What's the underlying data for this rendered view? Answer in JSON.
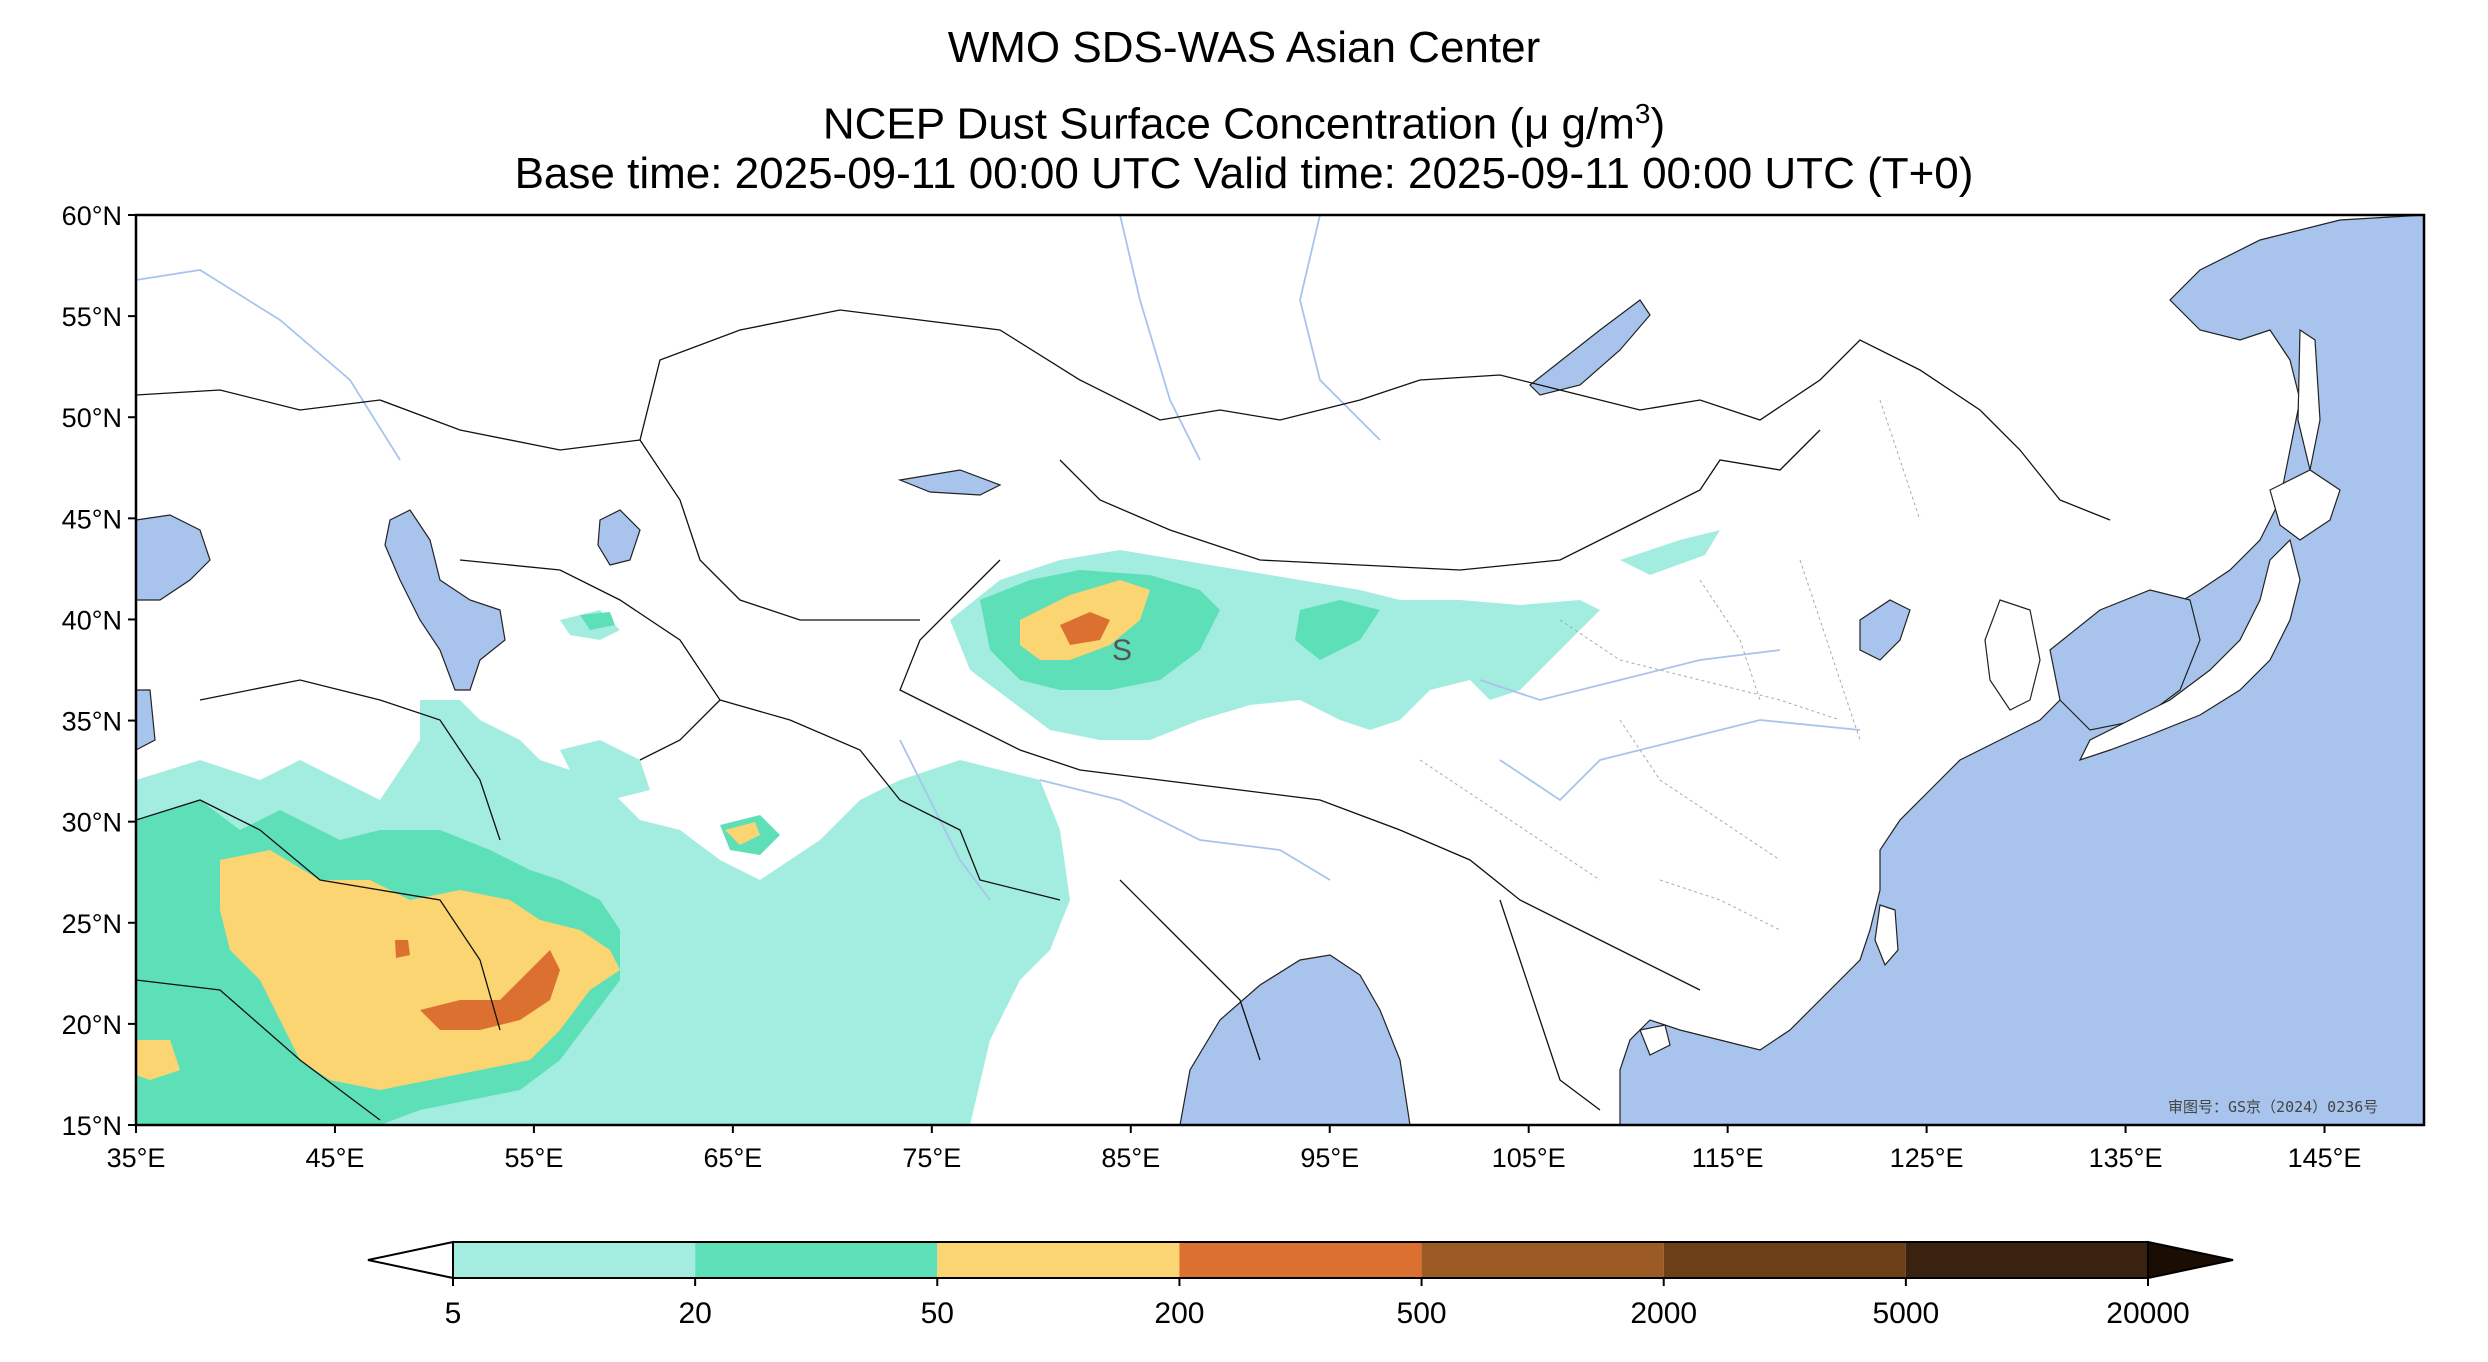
{
  "header": {
    "line1": "WMO SDS-WAS Asian Center",
    "line2_prefix": "NCEP Dust Surface Concentration (",
    "line2_unit": "μ g/m",
    "line2_sup": "3",
    "line2_suffix": ")",
    "line3": "Base time: 2025-09-11 00:00 UTC Valid time: 2025-09-11 00:00 UTC (T+0)"
  },
  "axes": {
    "lon_labels": [
      "35°E",
      "45°E",
      "55°E",
      "65°E",
      "75°E",
      "85°E",
      "95°E",
      "105°E",
      "115°E",
      "125°E",
      "135°E",
      "145°E"
    ],
    "lat_labels": [
      "60°N",
      "55°N",
      "50°N",
      "45°N",
      "40°N",
      "35°N",
      "30°N",
      "25°N",
      "20°N",
      "15°N"
    ],
    "lon_range": [
      35,
      150
    ],
    "lat_range": [
      15,
      60
    ]
  },
  "colorbar": {
    "boundaries": [
      "5",
      "20",
      "50",
      "200",
      "500",
      "2000",
      "5000",
      "20000"
    ],
    "colors": [
      "#a3ece0",
      "#5ddfb8",
      "#fbd572",
      "#dc7030",
      "#9c5a24",
      "#6b4018",
      "#3a2210"
    ],
    "under_color": "#ffffff",
    "over_color": "#1a0d04"
  },
  "map": {
    "ocean_color": "#a8c4ec",
    "land_color": "#ffffff",
    "river_color": "#a8c4ec",
    "marker_letter": "S"
  },
  "watermark": "审图号：GS京（2024）0236号"
}
